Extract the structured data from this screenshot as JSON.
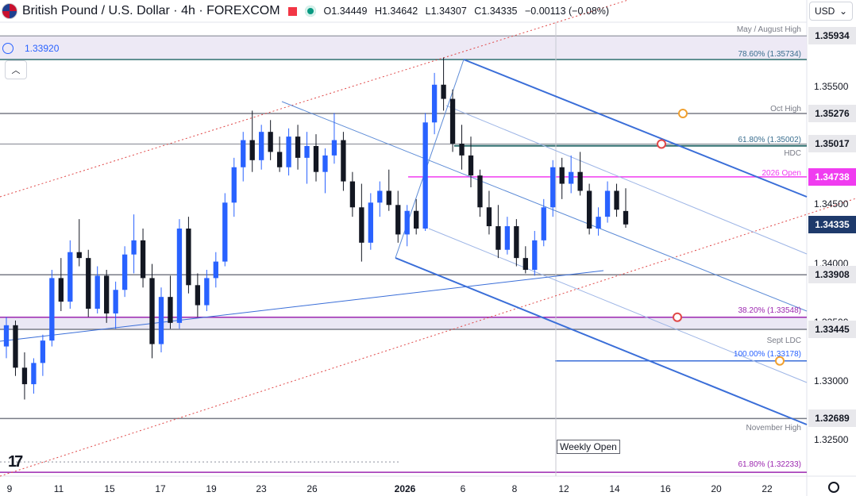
{
  "header": {
    "symbol_title": "British Pound / U.S. Dollar · 4h · FOREXCOM",
    "ohlc": [
      {
        "label": "O",
        "value": "1.34449"
      },
      {
        "label": "H",
        "value": "1.34642"
      },
      {
        "label": "L",
        "value": "1.34307"
      },
      {
        "label": "C",
        "value": "1.34335"
      }
    ],
    "change": "−0.00113 (−0.08%)"
  },
  "currency_selector": {
    "label": "USD"
  },
  "alert": {
    "label": "1.33920"
  },
  "price_axis": {
    "ticks": [
      "1.35500",
      "1.35000",
      "1.34500",
      "1.34000",
      "1.33500",
      "1.33000",
      "1.32500"
    ],
    "badges": [
      {
        "text": "1.35934",
        "price": 1.35934,
        "bg": "#e8e8ec",
        "fg": "#131722"
      },
      {
        "text": "1.35276",
        "price": 1.35276,
        "bg": "#e8e8ec",
        "fg": "#131722"
      },
      {
        "text": "1.35017",
        "price": 1.35017,
        "bg": "#e8e8ec",
        "fg": "#131722"
      },
      {
        "text": "1.34738",
        "price": 1.34738,
        "bg": "#f03cf0",
        "fg": "#ffffff"
      },
      {
        "text": "1.34335",
        "price": 1.34335,
        "bg": "#1e3a6b",
        "fg": "#ffffff"
      },
      {
        "text": "1.33908",
        "price": 1.33908,
        "bg": "#e8e8ec",
        "fg": "#131722"
      },
      {
        "text": "1.33445",
        "price": 1.33445,
        "bg": "#e8e8ec",
        "fg": "#131722"
      },
      {
        "text": "1.32689",
        "price": 1.32689,
        "bg": "#e8e8ec",
        "fg": "#131722"
      }
    ]
  },
  "time_axis": {
    "ticks": [
      {
        "label": "9",
        "bold": false
      },
      {
        "label": "11",
        "bold": false
      },
      {
        "label": "15",
        "bold": false
      },
      {
        "label": "17",
        "bold": false
      },
      {
        "label": "19",
        "bold": false
      },
      {
        "label": "23",
        "bold": false
      },
      {
        "label": "26",
        "bold": false
      },
      {
        "label": "2026",
        "bold": true
      },
      {
        "label": "6",
        "bold": false
      },
      {
        "label": "8",
        "bold": false
      },
      {
        "label": "12",
        "bold": false
      },
      {
        "label": "14",
        "bold": false
      },
      {
        "label": "16",
        "bold": false
      },
      {
        "label": "20",
        "bold": false
      },
      {
        "label": "22",
        "bold": false
      }
    ]
  },
  "annotations": [
    {
      "text": "May / August High",
      "price": 1.35934,
      "color": "#787b86"
    },
    {
      "text": "78.60% (1.35734)",
      "price": 1.35734,
      "color": "#3a6e8f"
    },
    {
      "text": "Oct High",
      "price": 1.35276,
      "color": "#787b86"
    },
    {
      "text": "61.80% (1.35002)",
      "price": 1.35002,
      "color": "#3a6e8f"
    },
    {
      "text": "HDC",
      "price": 1.35017,
      "color": "#787b86"
    },
    {
      "text": "2026 Open",
      "price": 1.34738,
      "color": "#f03cf0"
    },
    {
      "text": "38.20% (1.33548)",
      "price": 1.33548,
      "color": "#9c27b0"
    },
    {
      "text": "Sept LDC",
      "price": 1.33445,
      "color": "#787b86"
    },
    {
      "text": "100.00% (1.33178)",
      "price": 1.33178,
      "color": "#2962ff"
    },
    {
      "text": "November High",
      "price": 1.32689,
      "color": "#787b86"
    },
    {
      "text": "61.80% (1.32233)",
      "price": 1.32233,
      "color": "#9c27b0"
    }
  ],
  "weekly_open_label": "Weekly Open",
  "colors": {
    "up": "#2962ff",
    "down": "#131722",
    "level_gray": "#787b86",
    "fib_teal": "#2f6f6f",
    "magenta": "#f03cf0",
    "purple": "#9c27b0",
    "channel_blue": "#3a6ed8",
    "dotted_red": "#e04848"
  },
  "chart_data": {
    "type": "candlestick",
    "symbol": "British Pound / U.S. Dollar",
    "interval": "4h",
    "ylim": [
      1.322,
      1.3605
    ],
    "levels": [
      1.35934,
      1.35734,
      1.35276,
      1.35017,
      1.35002,
      1.34738,
      1.33908,
      1.33548,
      1.33445,
      1.33178,
      1.32689,
      1.32233
    ],
    "candles": [
      [
        1.333,
        1.3355,
        1.332,
        1.3348
      ],
      [
        1.3348,
        1.3352,
        1.3305,
        1.3312
      ],
      [
        1.3312,
        1.3325,
        1.3285,
        1.3298
      ],
      [
        1.3298,
        1.332,
        1.329,
        1.3316
      ],
      [
        1.3316,
        1.334,
        1.3305,
        1.3335
      ],
      [
        1.3335,
        1.3395,
        1.333,
        1.3388
      ],
      [
        1.3388,
        1.3405,
        1.336,
        1.3368
      ],
      [
        1.3368,
        1.342,
        1.3362,
        1.341
      ],
      [
        1.341,
        1.3438,
        1.3398,
        1.3405
      ],
      [
        1.3405,
        1.3412,
        1.3355,
        1.3362
      ],
      [
        1.3362,
        1.3398,
        1.3358,
        1.339
      ],
      [
        1.339,
        1.3395,
        1.335,
        1.3358
      ],
      [
        1.3358,
        1.3385,
        1.3345,
        1.3378
      ],
      [
        1.3378,
        1.3415,
        1.3372,
        1.3408
      ],
      [
        1.3408,
        1.3442,
        1.3392,
        1.342
      ],
      [
        1.342,
        1.343,
        1.338,
        1.3388
      ],
      [
        1.3388,
        1.34,
        1.332,
        1.3332
      ],
      [
        1.3332,
        1.338,
        1.3325,
        1.3372
      ],
      [
        1.3372,
        1.339,
        1.3345,
        1.335
      ],
      [
        1.335,
        1.3438,
        1.3345,
        1.343
      ],
      [
        1.343,
        1.344,
        1.3375,
        1.3382
      ],
      [
        1.3382,
        1.3392,
        1.3355,
        1.3365
      ],
      [
        1.3365,
        1.3395,
        1.336,
        1.3388
      ],
      [
        1.3388,
        1.341,
        1.338,
        1.3402
      ],
      [
        1.3402,
        1.346,
        1.3398,
        1.3452
      ],
      [
        1.3452,
        1.349,
        1.344,
        1.3482
      ],
      [
        1.3482,
        1.3512,
        1.347,
        1.3505
      ],
      [
        1.3505,
        1.353,
        1.3478,
        1.3488
      ],
      [
        1.3488,
        1.3518,
        1.348,
        1.3512
      ],
      [
        1.3512,
        1.3522,
        1.3488,
        1.3495
      ],
      [
        1.3495,
        1.3508,
        1.3478,
        1.3482
      ],
      [
        1.3482,
        1.3515,
        1.3475,
        1.3508
      ],
      [
        1.3508,
        1.3518,
        1.348,
        1.349
      ],
      [
        1.349,
        1.3512,
        1.3468,
        1.35
      ],
      [
        1.35,
        1.351,
        1.347,
        1.3478
      ],
      [
        1.3478,
        1.3498,
        1.346,
        1.3492
      ],
      [
        1.3492,
        1.3528,
        1.3485,
        1.3505
      ],
      [
        1.3505,
        1.3512,
        1.3462,
        1.347
      ],
      [
        1.347,
        1.3478,
        1.344,
        1.3448
      ],
      [
        1.3448,
        1.3468,
        1.3402,
        1.3418
      ],
      [
        1.3418,
        1.346,
        1.3412,
        1.3452
      ],
      [
        1.3452,
        1.347,
        1.344,
        1.3462
      ],
      [
        1.3462,
        1.348,
        1.3445,
        1.345
      ],
      [
        1.345,
        1.3462,
        1.3418,
        1.3425
      ],
      [
        1.3425,
        1.345,
        1.3415,
        1.3445
      ],
      [
        1.3445,
        1.3455,
        1.3425,
        1.343
      ],
      [
        1.343,
        1.3528,
        1.3428,
        1.352
      ],
      [
        1.352,
        1.3562,
        1.351,
        1.3552
      ],
      [
        1.3552,
        1.3575,
        1.353,
        1.354
      ],
      [
        1.354,
        1.3548,
        1.3495,
        1.3502
      ],
      [
        1.3502,
        1.3518,
        1.348,
        1.3492
      ],
      [
        1.3492,
        1.3508,
        1.3465,
        1.3475
      ],
      [
        1.3475,
        1.348,
        1.344,
        1.3448
      ],
      [
        1.3448,
        1.3462,
        1.3425,
        1.3432
      ],
      [
        1.3432,
        1.345,
        1.3405,
        1.3412
      ],
      [
        1.3412,
        1.344,
        1.3408,
        1.3432
      ],
      [
        1.3432,
        1.3438,
        1.3398,
        1.3405
      ],
      [
        1.3405,
        1.3415,
        1.3392,
        1.3395
      ],
      [
        1.3395,
        1.3428,
        1.339,
        1.342
      ],
      [
        1.342,
        1.3455,
        1.3415,
        1.3448
      ],
      [
        1.3448,
        1.3488,
        1.344,
        1.3482
      ],
      [
        1.3482,
        1.349,
        1.3455,
        1.3468
      ],
      [
        1.3468,
        1.3492,
        1.346,
        1.3478
      ],
      [
        1.3478,
        1.3495,
        1.3458,
        1.3462
      ],
      [
        1.3462,
        1.3468,
        1.3425,
        1.343
      ],
      [
        1.343,
        1.3448,
        1.3424,
        1.344
      ],
      [
        1.344,
        1.347,
        1.3435,
        1.3462
      ],
      [
        1.3462,
        1.3468,
        1.344,
        1.3446
      ],
      [
        1.34449,
        1.34642,
        1.34307,
        1.34335
      ]
    ]
  }
}
